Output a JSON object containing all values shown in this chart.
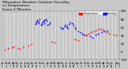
{
  "title": "Milwaukee Weather Outdoor Humidity\nvs Temperature\nEvery 5 Minutes",
  "title_fontsize": 3.2,
  "legend_labels": [
    "Humidity",
    "Temperature"
  ],
  "legend_colors": [
    "#0000ff",
    "#ff0000"
  ],
  "bg_color": "#c8c8c8",
  "plot_bg_color": "#c8c8c8",
  "grid_color": "#ffffff",
  "ylim": [
    -20,
    100
  ],
  "ytick_fontsize": 2.8,
  "xtick_fontsize": 1.8,
  "marker_size": 1.5,
  "humidity_color": "#0000ff",
  "temperature_color": "#ff0000",
  "humidity_dots": {
    "x": [
      0.28,
      0.29,
      0.3,
      0.31,
      0.3,
      0.32,
      0.33,
      0.31,
      0.29,
      0.34,
      0.35,
      0.36,
      0.34,
      0.35,
      0.37,
      0.38,
      0.36,
      0.39,
      0.4,
      0.41,
      0.5,
      0.51,
      0.52,
      0.53,
      0.54,
      0.55,
      0.56,
      0.55,
      0.57,
      0.58,
      0.6,
      0.61,
      0.62,
      0.63,
      0.65,
      0.67,
      0.68,
      0.7,
      0.72,
      0.75,
      0.77,
      0.8,
      0.82,
      0.85,
      0.87,
      0.9
    ],
    "y": [
      68,
      72,
      75,
      70,
      78,
      80,
      65,
      73,
      71,
      68,
      74,
      78,
      72,
      76,
      80,
      75,
      70,
      65,
      68,
      72,
      60,
      55,
      58,
      62,
      65,
      60,
      57,
      63,
      68,
      72,
      70,
      65,
      60,
      55,
      50,
      48,
      45,
      42,
      40,
      38,
      35,
      42,
      45,
      48,
      50,
      52
    ]
  },
  "temperature_dots": {
    "x": [
      0.02,
      0.05,
      0.08,
      0.1,
      0.13,
      0.15,
      0.18,
      0.22,
      0.25,
      0.42,
      0.45,
      0.62,
      0.65,
      0.7,
      0.72,
      0.74,
      0.76,
      0.78,
      0.8,
      0.82,
      0.84,
      0.86,
      0.88,
      0.9,
      0.92,
      0.95,
      0.97
    ],
    "y": [
      5,
      8,
      10,
      12,
      8,
      6,
      10,
      15,
      18,
      25,
      22,
      30,
      28,
      40,
      42,
      45,
      48,
      50,
      52,
      55,
      55,
      53,
      50,
      48,
      45,
      42,
      40
    ]
  },
  "yticks": [
    -20,
    0,
    20,
    40,
    60,
    80,
    100
  ],
  "num_xticks": 32
}
